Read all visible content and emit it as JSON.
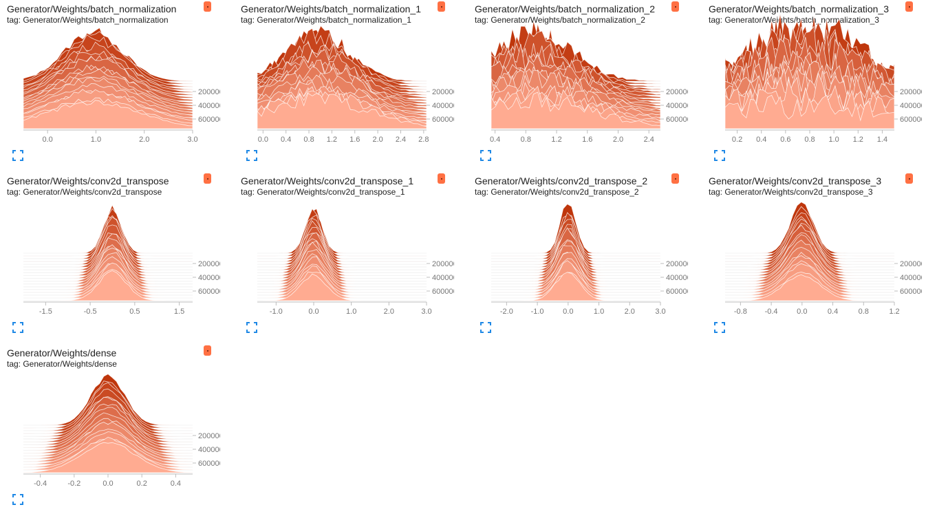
{
  "accent_color": "#ff7043",
  "expand_icon": "fullscreen-icon",
  "cards": [
    {
      "title": "Generator/Weights/batch_normalization",
      "tag": "tag: Generator/Weights/batch_normalization",
      "chart_data": {
        "type": "area",
        "subtype": "histogram-offset",
        "x_ticks": [
          "0.0",
          "1.0",
          "2.0",
          "3.0"
        ],
        "xlim": [
          -0.5,
          3.0
        ],
        "y_ticks": [
          "200000",
          "400000",
          "600000"
        ],
        "steps": [
          0,
          700000
        ],
        "center": 0.95,
        "spread": 0.6,
        "noise": 0.1,
        "color_old": "#bf360c",
        "color_new": "#ffab91"
      }
    },
    {
      "title": "Generator/Weights/batch_normalization_1",
      "tag": "tag: Generator/Weights/batch_normalization_1",
      "chart_data": {
        "type": "area",
        "subtype": "histogram-offset",
        "x_ticks": [
          "0.0",
          "0.4",
          "0.8",
          "1.2",
          "1.6",
          "2.0",
          "2.4",
          "2.8"
        ],
        "xlim": [
          -0.1,
          2.85
        ],
        "y_ticks": [
          "200000",
          "400000",
          "600000"
        ],
        "steps": [
          0,
          700000
        ],
        "center": 0.95,
        "spread": 0.55,
        "noise": 0.25,
        "color_old": "#bf360c",
        "color_new": "#ffab91"
      }
    },
    {
      "title": "Generator/Weights/batch_normalization_2",
      "tag": "tag: Generator/Weights/batch_normalization_2",
      "chart_data": {
        "type": "area",
        "subtype": "histogram-offset",
        "x_ticks": [
          "0.4",
          "0.8",
          "1.2",
          "1.6",
          "2.0",
          "2.4"
        ],
        "xlim": [
          0.35,
          2.55
        ],
        "y_ticks": [
          "200000",
          "400000",
          "600000"
        ],
        "steps": [
          0,
          700000
        ],
        "center": 0.9,
        "spread": 0.5,
        "noise": 0.35,
        "color_old": "#bf360c",
        "color_new": "#ffab91"
      }
    },
    {
      "title": "Generator/Weights/batch_normalization_3",
      "tag": "tag: Generator/Weights/batch_normalization_3",
      "chart_data": {
        "type": "area",
        "subtype": "histogram-offset",
        "x_ticks": [
          "0.2",
          "0.4",
          "0.6",
          "0.8",
          "1.0",
          "1.2",
          "1.4"
        ],
        "xlim": [
          0.1,
          1.5
        ],
        "y_ticks": [
          "200000",
          "400000",
          "600000"
        ],
        "steps": [
          0,
          700000
        ],
        "center": 0.75,
        "spread": 0.45,
        "noise": 0.6,
        "color_old": "#bf360c",
        "color_new": "#ffab91"
      }
    },
    {
      "title": "Generator/Weights/conv2d_transpose",
      "tag": "tag: Generator/Weights/conv2d_transpose",
      "chart_data": {
        "type": "area",
        "subtype": "histogram-offset",
        "x_ticks": [
          "-1.5",
          "-0.5",
          "0.5",
          "1.5"
        ],
        "xlim": [
          -2.0,
          1.8
        ],
        "y_ticks": [
          "200000",
          "400000",
          "600000"
        ],
        "steps": [
          0,
          700000
        ],
        "center": 0.0,
        "spread": 0.2,
        "noise": 0.08,
        "color_old": "#bf360c",
        "color_new": "#ffab91"
      }
    },
    {
      "title": "Generator/Weights/conv2d_transpose_1",
      "tag": "tag: Generator/Weights/conv2d_transpose_1",
      "chart_data": {
        "type": "area",
        "subtype": "histogram-offset",
        "x_ticks": [
          "-1.0",
          "0.0",
          "1.0",
          "2.0",
          "3.0"
        ],
        "xlim": [
          -1.5,
          3.0
        ],
        "y_ticks": [
          "200000",
          "400000",
          "600000"
        ],
        "steps": [
          0,
          700000
        ],
        "center": 0.0,
        "spread": 0.22,
        "noise": 0.08,
        "color_old": "#bf360c",
        "color_new": "#ffab91"
      }
    },
    {
      "title": "Generator/Weights/conv2d_transpose_2",
      "tag": "tag: Generator/Weights/conv2d_transpose_2",
      "chart_data": {
        "type": "area",
        "subtype": "histogram-offset",
        "x_ticks": [
          "-2.0",
          "-1.0",
          "0.0",
          "1.0",
          "2.0",
          "3.0"
        ],
        "xlim": [
          -2.5,
          3.0
        ],
        "y_ticks": [
          "200000",
          "400000",
          "600000"
        ],
        "steps": [
          0,
          700000
        ],
        "center": 0.0,
        "spread": 0.25,
        "noise": 0.08,
        "color_old": "#bf360c",
        "color_new": "#ffab91"
      }
    },
    {
      "title": "Generator/Weights/conv2d_transpose_3",
      "tag": "tag: Generator/Weights/conv2d_transpose_3",
      "chart_data": {
        "type": "area",
        "subtype": "histogram-offset",
        "x_ticks": [
          "-0.8",
          "-0.4",
          "0.0",
          "0.4",
          "0.8",
          "1.2"
        ],
        "xlim": [
          -1.0,
          1.2
        ],
        "y_ticks": [
          "200000",
          "400000",
          "600000"
        ],
        "steps": [
          0,
          700000
        ],
        "center": 0.0,
        "spread": 0.15,
        "noise": 0.06,
        "color_old": "#bf360c",
        "color_new": "#ffab91"
      }
    },
    {
      "title": "Generator/Weights/dense",
      "tag": "tag: Generator/Weights/dense",
      "chart_data": {
        "type": "area",
        "subtype": "histogram-offset",
        "x_ticks": [
          "-0.4",
          "-0.2",
          "0.0",
          "0.2",
          "0.4"
        ],
        "xlim": [
          -0.5,
          0.5
        ],
        "y_ticks": [
          "200000",
          "400000",
          "600000"
        ],
        "steps": [
          0,
          700000
        ],
        "center": 0.0,
        "spread": 0.1,
        "noise": 0.05,
        "color_old": "#bf360c",
        "color_new": "#ffab91"
      }
    }
  ]
}
